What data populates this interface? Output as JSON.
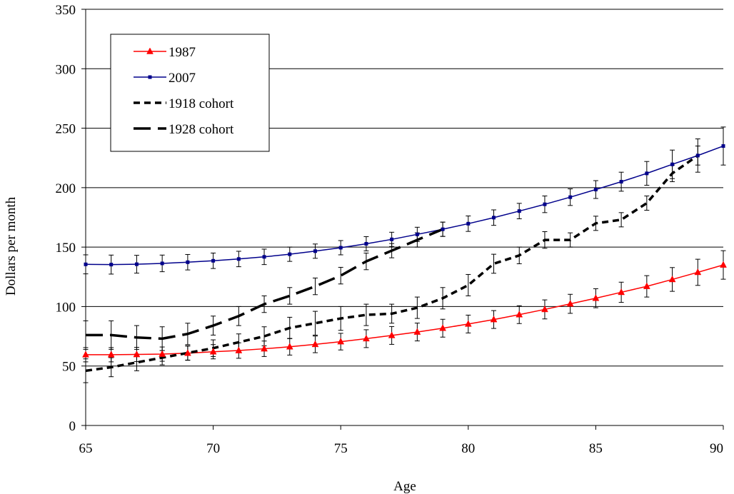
{
  "chart_data": {
    "type": "line",
    "title": "",
    "xlabel": "Age",
    "ylabel": "Dollars  per month",
    "xlim": [
      65,
      90
    ],
    "ylim": [
      0,
      350
    ],
    "x_ticks": [
      65,
      70,
      75,
      80,
      85,
      90
    ],
    "y_ticks": [
      0,
      50,
      100,
      150,
      200,
      250,
      300,
      350
    ],
    "grid": "horizontal",
    "legend_position": "top-left",
    "series": [
      {
        "name": "1987",
        "color": "#ff0000",
        "style": "solid",
        "marker": "triangle",
        "error_bars": true,
        "x": [
          65,
          66,
          67,
          68,
          69,
          70,
          71,
          72,
          73,
          74,
          75,
          76,
          77,
          78,
          79,
          80,
          81,
          82,
          83,
          84,
          85,
          86,
          87,
          88,
          89,
          90
        ],
        "values": [
          59.5,
          59.5,
          59.7,
          60,
          60.8,
          62,
          63,
          64.5,
          66.2,
          68.2,
          70.5,
          73,
          75.7,
          78.6,
          81.8,
          85.3,
          89.1,
          93.2,
          97.6,
          102.3,
          107,
          112,
          117,
          122.8,
          128.8,
          135
        ],
        "errors": [
          6,
          6,
          6,
          6,
          6,
          6,
          6.5,
          6.5,
          7,
          7,
          7,
          7.5,
          7.5,
          7.5,
          7.5,
          7.5,
          7.5,
          7.5,
          8,
          8,
          8,
          8.5,
          9,
          10,
          11,
          12
        ]
      },
      {
        "name": "2007",
        "color": "#00008b",
        "style": "solid",
        "marker": "square",
        "error_bars": true,
        "x": [
          65,
          66,
          67,
          68,
          69,
          70,
          71,
          72,
          73,
          74,
          75,
          76,
          77,
          78,
          79,
          80,
          81,
          82,
          83,
          84,
          85,
          86,
          87,
          88,
          89,
          90
        ],
        "values": [
          135.5,
          135.3,
          135.6,
          136.3,
          137.3,
          138.5,
          140,
          141.8,
          144,
          146.6,
          149.5,
          152.8,
          156.5,
          160.7,
          165,
          169.7,
          174.8,
          180.3,
          186,
          192,
          198.4,
          205,
          212,
          219.6,
          227,
          235
        ],
        "errors": [
          8,
          8,
          7.5,
          7,
          6.5,
          6.5,
          6.5,
          6.5,
          6,
          6,
          6,
          6,
          6,
          6,
          6,
          6.5,
          6.5,
          6.5,
          7,
          7,
          7.5,
          8,
          10,
          12,
          14,
          16
        ]
      },
      {
        "name": "1918 cohort",
        "color": "#000000",
        "style": "short-dash",
        "marker": "none",
        "error_bars": true,
        "x": [
          65,
          66,
          67,
          68,
          69,
          70,
          71,
          72,
          73,
          74,
          75,
          76,
          77,
          78,
          79,
          80,
          81,
          82,
          83,
          84,
          85,
          86,
          87,
          88,
          89,
          90
        ],
        "values": [
          46,
          49,
          53,
          57,
          61,
          65,
          70,
          75,
          82,
          86,
          90,
          93,
          94,
          99,
          107,
          118,
          136,
          143,
          156,
          156,
          170,
          173,
          187,
          212,
          227,
          null
        ],
        "errors": [
          10,
          8,
          7,
          6,
          6,
          7,
          7,
          8,
          9,
          10,
          10,
          9,
          8,
          9,
          9,
          9,
          8,
          7,
          7,
          6,
          6,
          6,
          6,
          7,
          8,
          null
        ]
      },
      {
        "name": "1928 cohort",
        "color": "#000000",
        "style": "long-dash",
        "marker": "none",
        "error_bars": true,
        "x": [
          65,
          66,
          67,
          68,
          69,
          70,
          71,
          72,
          73,
          74,
          75,
          76,
          77,
          78,
          79,
          80,
          81,
          82,
          83,
          84,
          85,
          86,
          87,
          88,
          89,
          90
        ],
        "values": [
          76,
          76,
          74,
          73,
          77,
          84,
          92,
          102,
          109,
          117,
          126,
          138,
          147,
          156,
          165,
          null,
          null,
          null,
          null,
          null,
          null,
          null,
          null,
          null,
          null,
          null
        ],
        "errors": [
          12,
          12,
          10,
          10,
          9,
          8,
          8,
          7,
          7,
          7,
          7,
          7,
          6,
          6,
          6,
          null,
          null,
          null,
          null,
          null,
          null,
          null,
          null,
          null,
          null,
          null
        ]
      }
    ]
  }
}
